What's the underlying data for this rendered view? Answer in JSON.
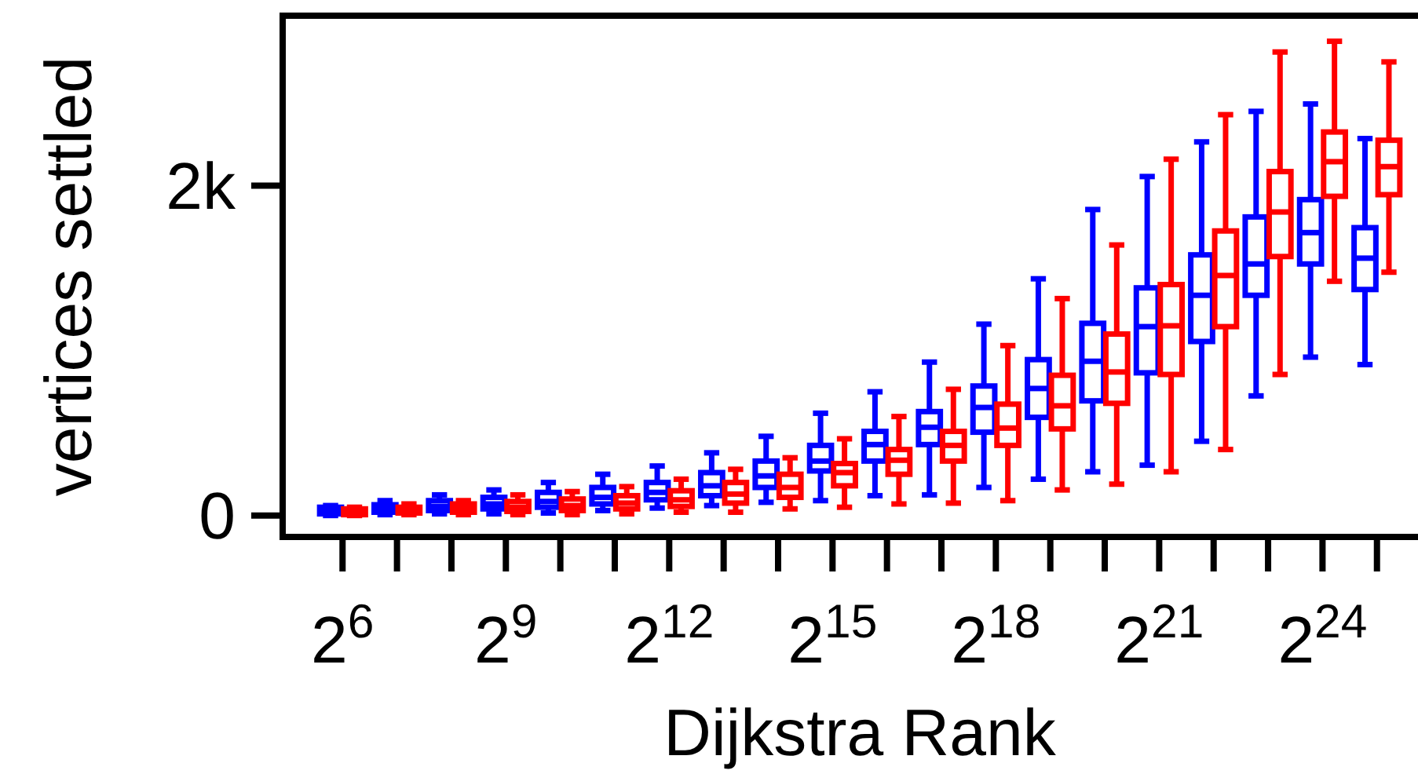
{
  "chart_data": {
    "type": "box",
    "xlabel": "Dijkstra Rank",
    "ylabel": "vertices settled",
    "categories": [
      "2$^{6}$",
      null,
      null,
      "2$^{9}$",
      null,
      null,
      "2$^{12}$",
      null,
      null,
      "2$^{15}$",
      null,
      null,
      "2$^{18}$",
      null,
      null,
      "2$^{21}$",
      null,
      null,
      "2$^{24}$",
      null
    ],
    "ylim": [
      -130,
      3030
    ],
    "yticks": [
      0,
      {
        "value": 2000,
        "label": "2k"
      }
    ],
    "grid": false,
    "series": [
      {
        "color": "#0000ff",
        "boxes": [
          {
            "low": 0,
            "q1": 10,
            "median": 30,
            "q3": 50,
            "high": 60
          },
          {
            "low": 5,
            "q1": 20,
            "median": 40,
            "q3": 65,
            "high": 90
          },
          {
            "low": 10,
            "q1": 30,
            "median": 55,
            "q3": 90,
            "high": 125
          },
          {
            "low": 10,
            "q1": 40,
            "median": 70,
            "q3": 110,
            "high": 155
          },
          {
            "low": 15,
            "q1": 50,
            "median": 85,
            "q3": 140,
            "high": 200
          },
          {
            "low": 30,
            "q1": 70,
            "median": 110,
            "q3": 170,
            "high": 250
          },
          {
            "low": 45,
            "q1": 95,
            "median": 140,
            "q3": 200,
            "high": 300
          },
          {
            "low": 60,
            "q1": 120,
            "median": 180,
            "q3": 260,
            "high": 380
          },
          {
            "low": 80,
            "q1": 170,
            "median": 240,
            "q3": 330,
            "high": 480
          },
          {
            "low": 90,
            "q1": 270,
            "median": 330,
            "q3": 425,
            "high": 620
          },
          {
            "low": 120,
            "q1": 330,
            "median": 430,
            "q3": 510,
            "high": 750
          },
          {
            "low": 125,
            "q1": 430,
            "median": 535,
            "q3": 630,
            "high": 930
          },
          {
            "low": 170,
            "q1": 505,
            "median": 655,
            "q3": 785,
            "high": 1160
          },
          {
            "low": 220,
            "q1": 595,
            "median": 770,
            "q3": 945,
            "high": 1435
          },
          {
            "low": 265,
            "q1": 695,
            "median": 935,
            "q3": 1165,
            "high": 1855
          },
          {
            "low": 305,
            "q1": 865,
            "median": 1145,
            "q3": 1380,
            "high": 2055
          },
          {
            "low": 450,
            "q1": 1055,
            "median": 1335,
            "q3": 1580,
            "high": 2265
          },
          {
            "low": 725,
            "q1": 1335,
            "median": 1525,
            "q3": 1810,
            "high": 2450
          },
          {
            "low": 960,
            "q1": 1525,
            "median": 1715,
            "q3": 1915,
            "high": 2495
          },
          {
            "low": 915,
            "q1": 1370,
            "median": 1560,
            "q3": 1745,
            "high": 2285
          }
        ]
      },
      {
        "color": "#ff0000",
        "boxes": [
          {
            "low": 0,
            "q1": 5,
            "median": 20,
            "q3": 40,
            "high": 50
          },
          {
            "low": 5,
            "q1": 15,
            "median": 30,
            "q3": 50,
            "high": 70
          },
          {
            "low": 5,
            "q1": 20,
            "median": 40,
            "q3": 70,
            "high": 90
          },
          {
            "low": 5,
            "q1": 25,
            "median": 50,
            "q3": 85,
            "high": 125
          },
          {
            "low": 5,
            "q1": 30,
            "median": 60,
            "q3": 100,
            "high": 145
          },
          {
            "low": 10,
            "q1": 40,
            "median": 75,
            "q3": 120,
            "high": 175
          },
          {
            "low": 20,
            "q1": 55,
            "median": 95,
            "q3": 150,
            "high": 220
          },
          {
            "low": 20,
            "q1": 75,
            "median": 130,
            "q3": 200,
            "high": 280
          },
          {
            "low": 40,
            "q1": 110,
            "median": 170,
            "q3": 250,
            "high": 350
          },
          {
            "low": 50,
            "q1": 180,
            "median": 260,
            "q3": 315,
            "high": 465
          },
          {
            "low": 70,
            "q1": 250,
            "median": 335,
            "q3": 400,
            "high": 600
          },
          {
            "low": 75,
            "q1": 330,
            "median": 425,
            "q3": 510,
            "high": 765
          },
          {
            "low": 90,
            "q1": 425,
            "median": 530,
            "q3": 675,
            "high": 1030
          },
          {
            "low": 155,
            "q1": 525,
            "median": 665,
            "q3": 850,
            "high": 1315
          },
          {
            "low": 190,
            "q1": 680,
            "median": 870,
            "q3": 1100,
            "high": 1640
          },
          {
            "low": 265,
            "q1": 855,
            "median": 1150,
            "q3": 1400,
            "high": 2160
          },
          {
            "low": 400,
            "q1": 1145,
            "median": 1455,
            "q3": 1725,
            "high": 2430
          },
          {
            "low": 855,
            "q1": 1570,
            "median": 1840,
            "q3": 2085,
            "high": 2810
          },
          {
            "low": 1420,
            "q1": 1935,
            "median": 2145,
            "q3": 2325,
            "high": 2875
          },
          {
            "low": 1475,
            "q1": 1945,
            "median": 2115,
            "q3": 2275,
            "high": 2750
          }
        ]
      }
    ]
  }
}
